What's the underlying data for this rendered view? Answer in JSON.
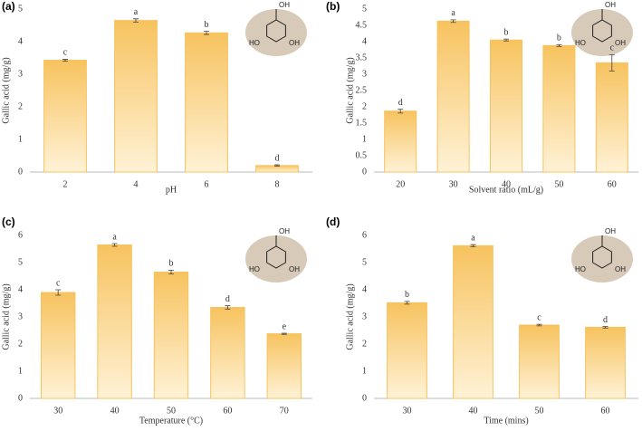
{
  "chart_data": [
    {
      "type": "bar",
      "panel": "(a)",
      "ylabel": "Gallic acid (mg/g)",
      "xlabel": "pH",
      "categories": [
        "2",
        "4",
        "6",
        "8"
      ],
      "values": [
        3.43,
        4.65,
        4.27,
        0.2
      ],
      "errors": [
        0.03,
        0.05,
        0.05,
        0.02
      ],
      "letters": [
        "c",
        "a",
        "b",
        "d"
      ],
      "color": "#f7c35f",
      "ylim": [
        0,
        5
      ],
      "yticks": [
        0,
        1,
        2,
        3,
        4,
        5
      ],
      "molecule_labels": [
        "OH",
        "HO",
        "OH"
      ]
    },
    {
      "type": "bar",
      "panel": "(b)",
      "ylabel": "Gallic acid (mg/g)",
      "xlabel": "Solvent ratio (mL/g)",
      "categories": [
        "20",
        "30",
        "40",
        "50",
        "60"
      ],
      "values": [
        1.87,
        4.63,
        4.05,
        3.88,
        3.35
      ],
      "errors": [
        0.06,
        0.04,
        0.03,
        0.03,
        0.25
      ],
      "letters": [
        "d",
        "a",
        "b",
        "b",
        "c"
      ],
      "color": "#f7c35f",
      "ylim": [
        0,
        5
      ],
      "yticks": [
        0,
        0.5,
        1,
        1.5,
        2,
        2.5,
        3,
        3.5,
        4,
        4.5,
        5
      ],
      "molecule_labels": [
        "OH",
        "HO",
        "OH"
      ]
    },
    {
      "type": "bar",
      "panel": "(c)",
      "ylabel": "Gallic acid (mg/g)",
      "xlabel": "Temperature (°C)",
      "categories": [
        "30",
        "40",
        "50",
        "60",
        "70"
      ],
      "values": [
        3.9,
        5.65,
        4.65,
        3.35,
        2.38
      ],
      "errors": [
        0.1,
        0.05,
        0.07,
        0.06,
        0.02
      ],
      "letters": [
        "c",
        "a",
        "b",
        "d",
        "e"
      ],
      "color": "#f7c35f",
      "ylim": [
        0,
        6
      ],
      "yticks": [
        0,
        1,
        2,
        3,
        4,
        5,
        6
      ],
      "molecule_labels": [
        "OH",
        "HO",
        "OH"
      ]
    },
    {
      "type": "bar",
      "panel": "(d)",
      "ylabel": "Gallic acid (mg/g)",
      "xlabel": "Time (mins)",
      "categories": [
        "30",
        "40",
        "50",
        "60"
      ],
      "values": [
        3.52,
        5.62,
        2.7,
        2.62
      ],
      "errors": [
        0.05,
        0.04,
        0.03,
        0.03
      ],
      "letters": [
        "b",
        "a",
        "c",
        "d"
      ],
      "color": "#f7c35f",
      "ylim": [
        0,
        6
      ],
      "yticks": [
        0,
        1,
        2,
        3,
        4,
        5,
        6
      ],
      "molecule_labels": [
        "OH",
        "HO",
        "OH"
      ]
    }
  ]
}
